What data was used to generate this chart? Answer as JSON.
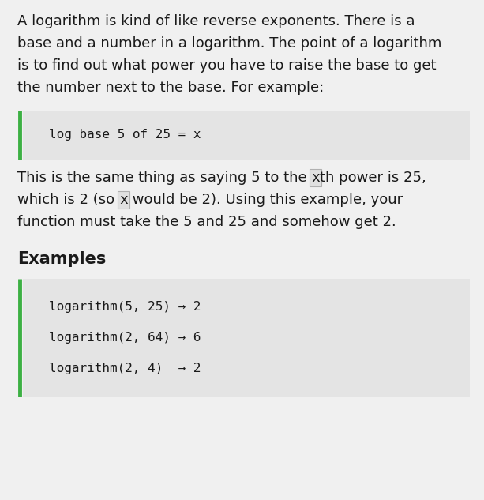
{
  "bg_color": "#f0f0f0",
  "text_color": "#1a1a1a",
  "code_color": "#1a1a1a",
  "code_bg": "#e4e4e4",
  "border_color": "#3cb043",
  "inline_code_bg": "#e0e0e0",
  "inline_code_border": "#b0b0b0",
  "para1_lines": [
    "A logarithm is kind of like reverse exponents. There is a",
    "base and a number in a logarithm. The point of a logarithm",
    "is to find out what power you have to raise the base to get",
    "the number next to the base. For example:"
  ],
  "code_block1": "log base 5 of 25 = x",
  "section_title": "Examples",
  "code_block2_lines": [
    "logarithm(5, 25) → 2",
    "logarithm(2, 64) → 6",
    "logarithm(2, 4)  → 2"
  ],
  "font_size_body": 13.0,
  "font_size_code": 11.5,
  "font_size_title": 15.0
}
